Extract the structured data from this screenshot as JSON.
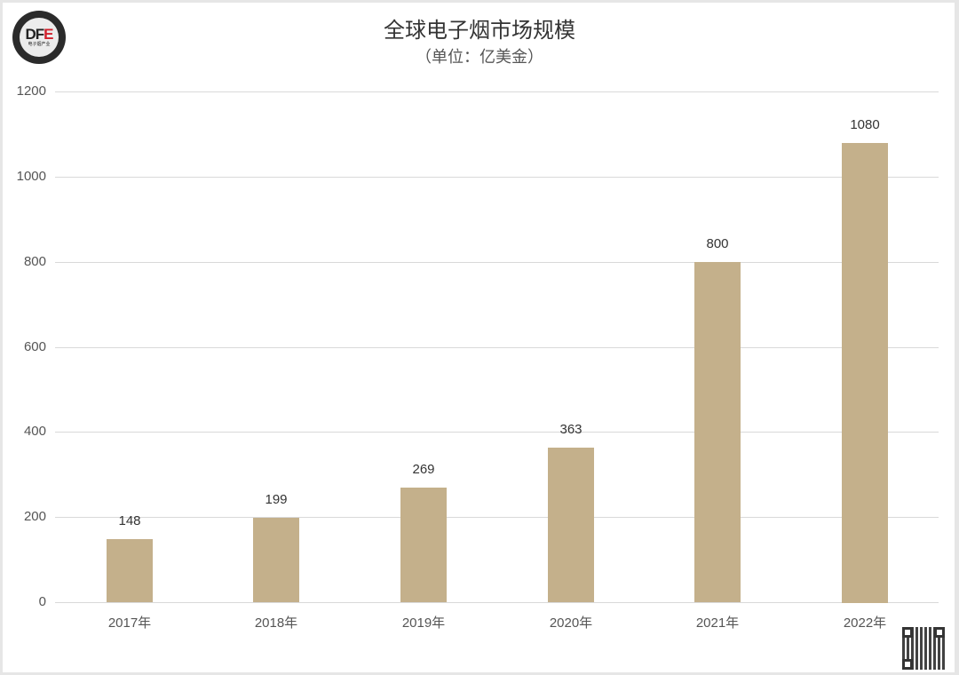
{
  "header": {
    "title": "全球电子烟市场规模",
    "subtitle": "（单位：亿美金）",
    "logo_text_main": "DF",
    "logo_text_accent": "E",
    "logo_sub": "电子烟产业"
  },
  "colors": {
    "bar": "#c4b08b",
    "grid": "#d9d9d9",
    "logo_accent": "#d11f2b"
  },
  "axis": {
    "y_ticks": [
      "1200",
      "1000",
      "800",
      "600",
      "400",
      "200",
      "0"
    ]
  },
  "chart_data": {
    "type": "bar",
    "title": "全球电子烟市场规模",
    "subtitle": "（单位：亿美金）",
    "categories": [
      "2017年",
      "2018年",
      "2019年",
      "2020年",
      "2021年",
      "2022年"
    ],
    "values": [
      148,
      199,
      269,
      363,
      800,
      1080
    ],
    "value_labels": [
      "148",
      "199",
      "269",
      "363",
      "800",
      "1080"
    ],
    "xlabel": "",
    "ylabel": "亿美金",
    "ylim": [
      0,
      1200
    ],
    "y_ticks": [
      0,
      200,
      400,
      600,
      800,
      1000,
      1200
    ],
    "grid": true,
    "legend": "none"
  }
}
